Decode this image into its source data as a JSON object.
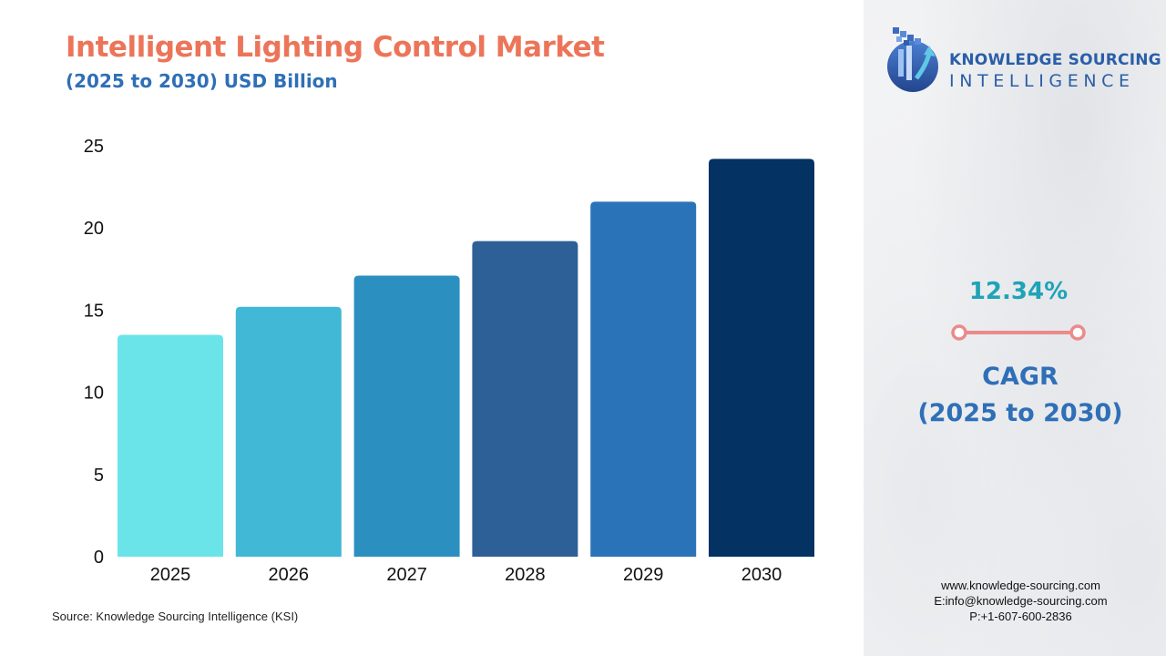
{
  "header": {
    "title": "Intelligent Lighting Control Market",
    "subtitle": "(2025 to 2030) USD Billion"
  },
  "chart_data": {
    "type": "bar",
    "categories": [
      "2025",
      "2026",
      "2027",
      "2028",
      "2029",
      "2030"
    ],
    "values": [
      13.5,
      15.2,
      17.1,
      19.2,
      21.6,
      24.2
    ],
    "bar_colors": [
      "#6ae4e8",
      "#41b8d5",
      "#2b90c0",
      "#2d6096",
      "#2b73b8",
      "#033263"
    ],
    "ylim": [
      0,
      25
    ],
    "yticks": [
      "0",
      "5",
      "10",
      "15",
      "20",
      "25"
    ],
    "grid": false,
    "xlabel": "",
    "ylabel": ""
  },
  "source": "Source: Knowledge Sourcing Intelligence (KSI)",
  "logo": {
    "line1": "KNOWLEDGE SOURCING",
    "line2": "INTELLIGENCE"
  },
  "cagr": {
    "value": "12.34%",
    "label_line1": "CAGR",
    "label_line2": "(2025 to 2030)",
    "accent_color": "#ec8a8a"
  },
  "contact": {
    "website": "www.knowledge-sourcing.com",
    "email": "E:info@knowledge-sourcing.com",
    "phone": "P:+1-607-600-2836"
  }
}
